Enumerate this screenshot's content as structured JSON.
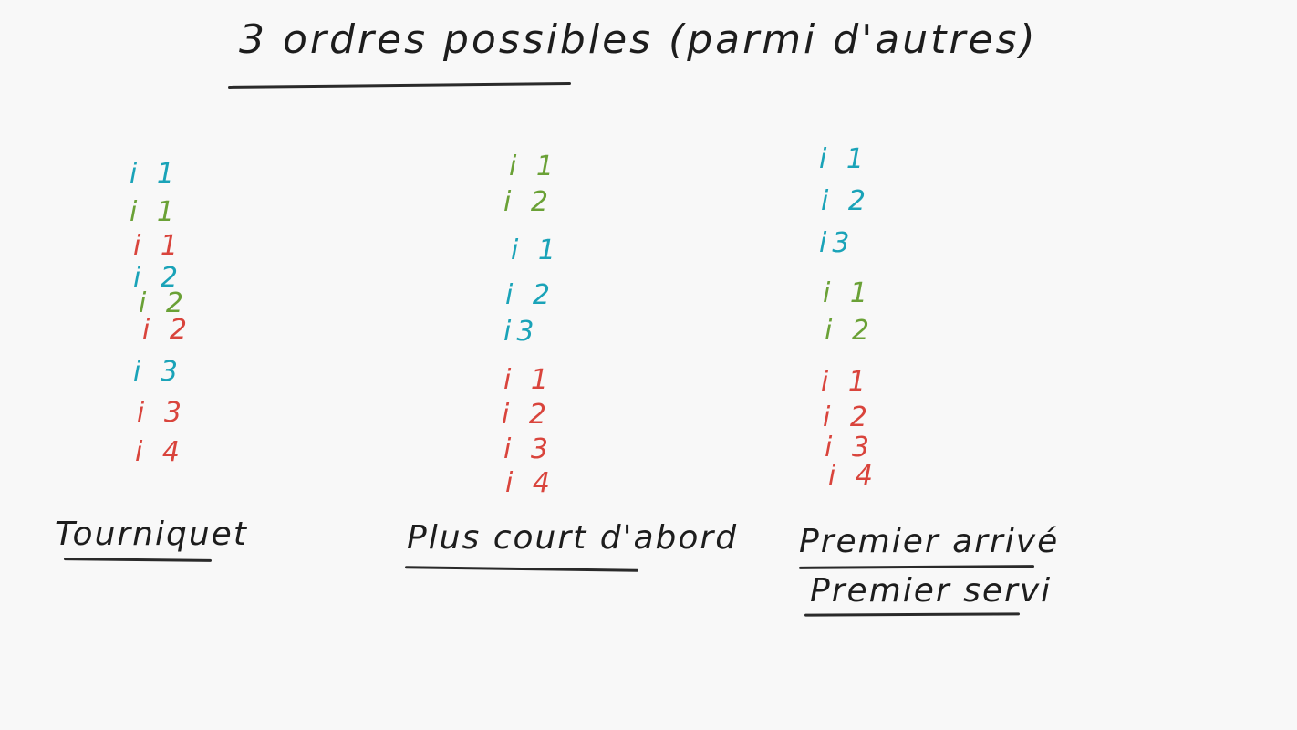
{
  "title": "3 ordres possibles (parmi d'autres)",
  "colors": {
    "background": "#f8f8f8",
    "ink": "#1d1d1d",
    "process_blue": "#1aa3b8",
    "process_green": "#6aa136",
    "process_red": "#d9443c"
  },
  "columns": [
    {
      "label": "Tourniquet",
      "label_lines": [
        "Tourniquet"
      ],
      "entries": [
        {
          "text": "i 1",
          "color": "blue"
        },
        {
          "text": "i 1",
          "color": "green"
        },
        {
          "text": "i 1",
          "color": "red"
        },
        {
          "text": "i 2",
          "color": "blue"
        },
        {
          "text": "i 2",
          "color": "green"
        },
        {
          "text": "i 2",
          "color": "red"
        },
        {
          "text": "i 3",
          "color": "blue"
        },
        {
          "text": "i 3",
          "color": "red"
        },
        {
          "text": "i 4",
          "color": "red"
        }
      ]
    },
    {
      "label": "Plus court d'abord",
      "label_lines": [
        "Plus court d'abord"
      ],
      "entries": [
        {
          "text": "i 1",
          "color": "green"
        },
        {
          "text": "i 2",
          "color": "green"
        },
        {
          "text": "i 1",
          "color": "blue"
        },
        {
          "text": "i 2",
          "color": "blue"
        },
        {
          "text": "i3",
          "color": "blue"
        },
        {
          "text": "i 1",
          "color": "red"
        },
        {
          "text": "i 2",
          "color": "red"
        },
        {
          "text": "i 3",
          "color": "red"
        },
        {
          "text": "i 4",
          "color": "red"
        }
      ]
    },
    {
      "label": "Premier arrivé / Premier servi",
      "label_lines": [
        "Premier arrivé",
        "Premier servi"
      ],
      "entries": [
        {
          "text": "i 1",
          "color": "blue"
        },
        {
          "text": "i 2",
          "color": "blue"
        },
        {
          "text": "i3",
          "color": "blue"
        },
        {
          "text": "i 1",
          "color": "green"
        },
        {
          "text": "i 2",
          "color": "green"
        },
        {
          "text": "i 1",
          "color": "red"
        },
        {
          "text": "i 2",
          "color": "red"
        },
        {
          "text": "i 3",
          "color": "red"
        },
        {
          "text": "i 4",
          "color": "red"
        }
      ]
    }
  ]
}
